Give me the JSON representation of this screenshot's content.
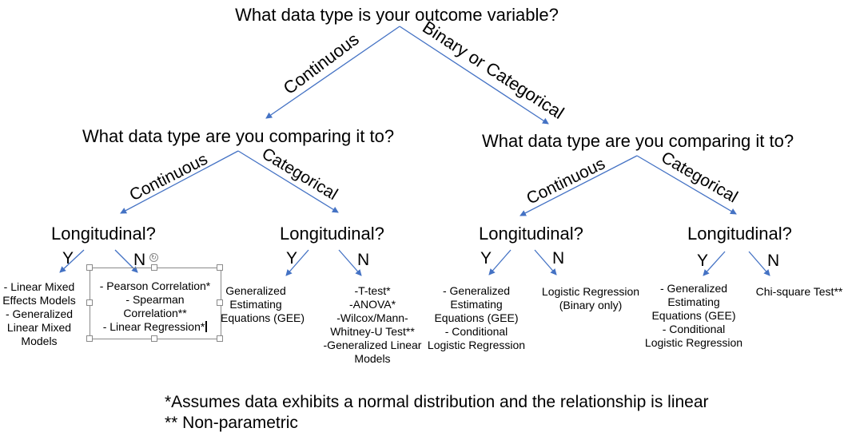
{
  "colors": {
    "edge": "#4472C4",
    "text": "#000000",
    "selection": "#8a8a8a"
  },
  "root": {
    "question": "What data type is your outcome variable?"
  },
  "edge_labels": {
    "root_continuous": "Continuous",
    "root_binary": "Binary or Categorical",
    "left_continuous": "Continuous",
    "left_categorical": "Categorical",
    "right_continuous": "Continuous",
    "right_categorical": "Categorical"
  },
  "left": {
    "question": "What data type are you comparing it to?",
    "continuous": {
      "label": "Longitudinal?",
      "yes": "Y",
      "no": "N",
      "yes_methods": [
        "- Linear Mixed",
        "Effects Models",
        "- Generalized",
        "Linear Mixed",
        "Models"
      ],
      "no_methods": [
        "- Pearson Correlation*",
        "- Spearman",
        "Correlation**",
        "- Linear Regression*"
      ]
    },
    "categorical": {
      "label": "Longitudinal?",
      "yes": "Y",
      "no": "N",
      "yes_methods": [
        "Generalized",
        "Estimating",
        "Equations (GEE)"
      ],
      "no_methods": [
        "-T-test*",
        "-ANOVA*",
        "-Wilcox/Mann-",
        "Whitney-U Test**",
        "-Generalized Linear",
        "Models"
      ]
    }
  },
  "right": {
    "question": "What data type are you comparing it to?",
    "continuous": {
      "label": "Longitudinal?",
      "yes": "Y",
      "no": "N",
      "yes_methods": [
        "- Generalized",
        "Estimating",
        "Equations (GEE)",
        "- Conditional",
        "Logistic Regression"
      ],
      "no_methods": [
        "Logistic Regression",
        "(Binary only)"
      ]
    },
    "categorical": {
      "label": "Longitudinal?",
      "yes": "Y",
      "no": "N",
      "yes_methods": [
        "- Generalized",
        "Estimating",
        "Equations (GEE)",
        "- Conditional",
        "Logistic Regression"
      ],
      "no_methods": [
        "Chi-square Test**"
      ]
    }
  },
  "footnotes": [
    "*Assumes data exhibits a normal distribution and the relationship is linear",
    "** Non-parametric"
  ]
}
